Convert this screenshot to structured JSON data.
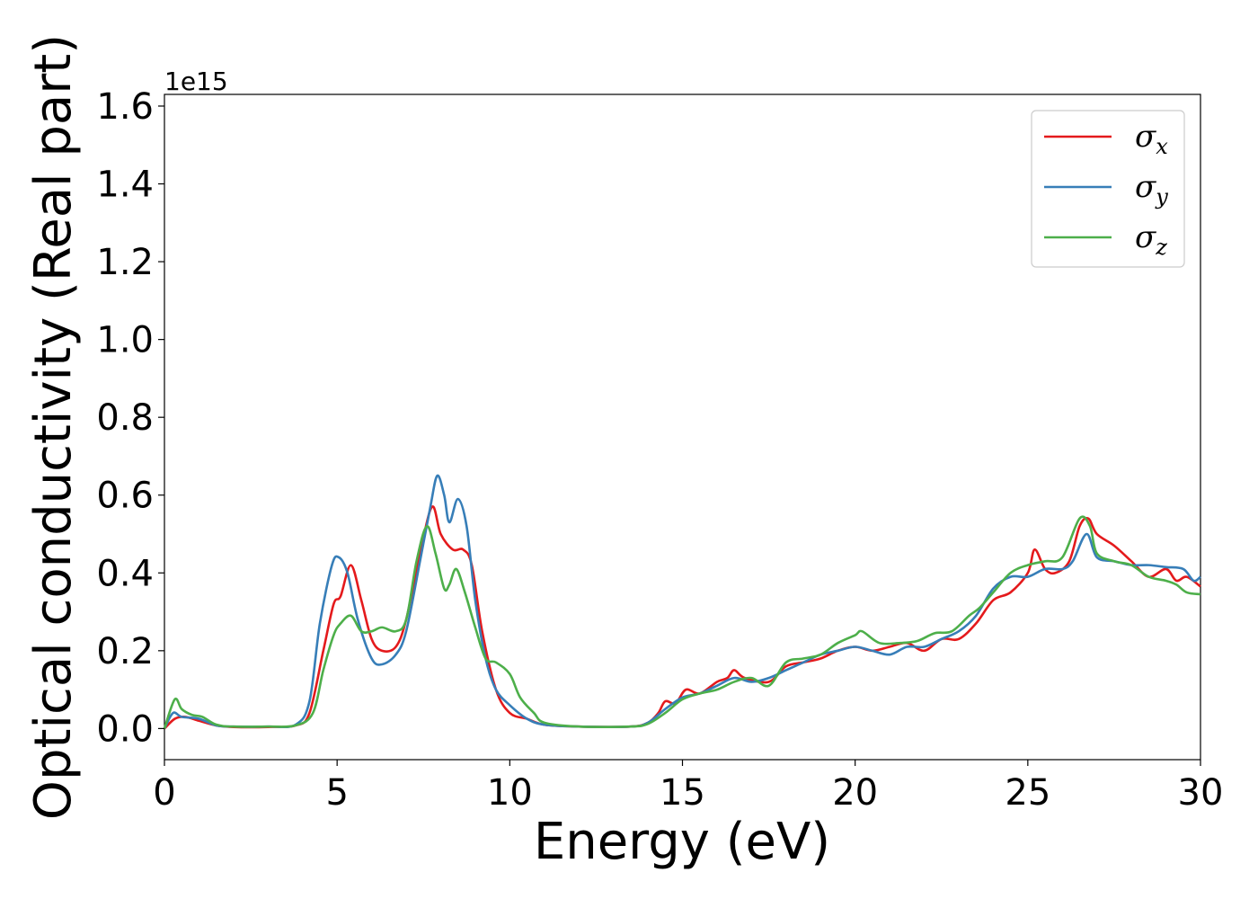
{
  "chart_data": {
    "type": "line",
    "xlabel": "Energy (eV)",
    "ylabel": "Optical conductivity (Real part)",
    "y_offset_text": "1e15",
    "y_multiplier": 1000000000000000.0,
    "xlim": [
      0,
      30
    ],
    "ylim": [
      -0.08,
      1.63
    ],
    "x_ticks": [
      0,
      5,
      10,
      15,
      20,
      25,
      30
    ],
    "x_tick_labels": [
      "0",
      "5",
      "10",
      "15",
      "20",
      "25",
      "30"
    ],
    "y_ticks": [
      0.0,
      0.2,
      0.4,
      0.6,
      0.8,
      1.0,
      1.2,
      1.4,
      1.6
    ],
    "y_tick_labels": [
      "0.0",
      "0.2",
      "0.4",
      "0.6",
      "0.8",
      "1.0",
      "1.2",
      "1.4",
      "1.6"
    ],
    "grid": false,
    "legend_position": "top-right",
    "series": [
      {
        "name": "σx",
        "symbol": "σ",
        "subscript": "x",
        "color": "#e41a1c",
        "points": [
          [
            0,
            0
          ],
          [
            0.3,
            0.025
          ],
          [
            0.6,
            0.03
          ],
          [
            1.0,
            0.02
          ],
          [
            1.5,
            0.008
          ],
          [
            2,
            0.004
          ],
          [
            3,
            0.004
          ],
          [
            3.8,
            0.008
          ],
          [
            4.2,
            0.04
          ],
          [
            4.6,
            0.2
          ],
          [
            4.9,
            0.32
          ],
          [
            5.1,
            0.34
          ],
          [
            5.4,
            0.42
          ],
          [
            5.7,
            0.33
          ],
          [
            6.0,
            0.23
          ],
          [
            6.3,
            0.2
          ],
          [
            6.7,
            0.21
          ],
          [
            7.0,
            0.28
          ],
          [
            7.4,
            0.45
          ],
          [
            7.75,
            0.57
          ],
          [
            8.0,
            0.5
          ],
          [
            8.35,
            0.46
          ],
          [
            8.65,
            0.46
          ],
          [
            8.9,
            0.42
          ],
          [
            9.2,
            0.25
          ],
          [
            9.6,
            0.1
          ],
          [
            10.0,
            0.04
          ],
          [
            10.5,
            0.025
          ],
          [
            11.0,
            0.01
          ],
          [
            12.0,
            0.005
          ],
          [
            13.5,
            0.005
          ],
          [
            14.0,
            0.015
          ],
          [
            14.3,
            0.04
          ],
          [
            14.5,
            0.07
          ],
          [
            14.8,
            0.065
          ],
          [
            15.1,
            0.1
          ],
          [
            15.5,
            0.09
          ],
          [
            16.0,
            0.12
          ],
          [
            16.3,
            0.13
          ],
          [
            16.5,
            0.15
          ],
          [
            16.8,
            0.13
          ],
          [
            17.5,
            0.12
          ],
          [
            18.0,
            0.16
          ],
          [
            18.5,
            0.17
          ],
          [
            19.0,
            0.18
          ],
          [
            19.5,
            0.2
          ],
          [
            20.0,
            0.21
          ],
          [
            20.5,
            0.2
          ],
          [
            21.0,
            0.21
          ],
          [
            21.5,
            0.22
          ],
          [
            22.0,
            0.2
          ],
          [
            22.5,
            0.23
          ],
          [
            23.0,
            0.23
          ],
          [
            23.5,
            0.27
          ],
          [
            24.0,
            0.33
          ],
          [
            24.5,
            0.35
          ],
          [
            25.0,
            0.4
          ],
          [
            25.2,
            0.46
          ],
          [
            25.5,
            0.41
          ],
          [
            25.8,
            0.4
          ],
          [
            26.2,
            0.43
          ],
          [
            26.5,
            0.52
          ],
          [
            26.75,
            0.54
          ],
          [
            27.0,
            0.5
          ],
          [
            27.5,
            0.47
          ],
          [
            28.0,
            0.43
          ],
          [
            28.5,
            0.39
          ],
          [
            29.0,
            0.41
          ],
          [
            29.3,
            0.38
          ],
          [
            29.6,
            0.39
          ],
          [
            30.0,
            0.365
          ]
        ]
      },
      {
        "name": "σy",
        "symbol": "σ",
        "subscript": "y",
        "color": "#377eb8",
        "points": [
          [
            0,
            0
          ],
          [
            0.25,
            0.04
          ],
          [
            0.5,
            0.03
          ],
          [
            1.0,
            0.025
          ],
          [
            1.5,
            0.008
          ],
          [
            2,
            0.005
          ],
          [
            3,
            0.005
          ],
          [
            3.8,
            0.01
          ],
          [
            4.2,
            0.07
          ],
          [
            4.5,
            0.27
          ],
          [
            4.85,
            0.42
          ],
          [
            5.05,
            0.44
          ],
          [
            5.3,
            0.4
          ],
          [
            5.6,
            0.28
          ],
          [
            6.0,
            0.18
          ],
          [
            6.3,
            0.165
          ],
          [
            6.7,
            0.19
          ],
          [
            7.0,
            0.25
          ],
          [
            7.4,
            0.43
          ],
          [
            7.7,
            0.57
          ],
          [
            7.9,
            0.65
          ],
          [
            8.1,
            0.6
          ],
          [
            8.25,
            0.53
          ],
          [
            8.5,
            0.59
          ],
          [
            8.75,
            0.52
          ],
          [
            9.0,
            0.33
          ],
          [
            9.3,
            0.18
          ],
          [
            9.6,
            0.1
          ],
          [
            10.0,
            0.06
          ],
          [
            10.5,
            0.025
          ],
          [
            11.0,
            0.01
          ],
          [
            12.0,
            0.005
          ],
          [
            13.5,
            0.005
          ],
          [
            14.0,
            0.015
          ],
          [
            14.5,
            0.05
          ],
          [
            15.0,
            0.08
          ],
          [
            15.5,
            0.09
          ],
          [
            16.0,
            0.11
          ],
          [
            16.5,
            0.13
          ],
          [
            17.0,
            0.12
          ],
          [
            17.5,
            0.13
          ],
          [
            18.0,
            0.15
          ],
          [
            18.5,
            0.17
          ],
          [
            19.0,
            0.19
          ],
          [
            19.5,
            0.2
          ],
          [
            20.0,
            0.21
          ],
          [
            20.5,
            0.2
          ],
          [
            21.0,
            0.19
          ],
          [
            21.5,
            0.21
          ],
          [
            22.0,
            0.21
          ],
          [
            22.5,
            0.23
          ],
          [
            23.0,
            0.25
          ],
          [
            23.5,
            0.29
          ],
          [
            24.0,
            0.36
          ],
          [
            24.5,
            0.39
          ],
          [
            25.0,
            0.39
          ],
          [
            25.5,
            0.41
          ],
          [
            26.0,
            0.41
          ],
          [
            26.3,
            0.43
          ],
          [
            26.7,
            0.5
          ],
          [
            27.0,
            0.44
          ],
          [
            27.5,
            0.43
          ],
          [
            28.0,
            0.42
          ],
          [
            28.5,
            0.42
          ],
          [
            29.0,
            0.415
          ],
          [
            29.5,
            0.41
          ],
          [
            29.8,
            0.38
          ],
          [
            30.0,
            0.39
          ]
        ]
      },
      {
        "name": "σz",
        "symbol": "σ",
        "subscript": "z",
        "color": "#4daf4a",
        "points": [
          [
            0,
            0
          ],
          [
            0.3,
            0.075
          ],
          [
            0.5,
            0.05
          ],
          [
            0.8,
            0.035
          ],
          [
            1.1,
            0.03
          ],
          [
            1.5,
            0.01
          ],
          [
            2,
            0.005
          ],
          [
            3,
            0.005
          ],
          [
            3.8,
            0.008
          ],
          [
            4.3,
            0.04
          ],
          [
            4.6,
            0.15
          ],
          [
            4.9,
            0.24
          ],
          [
            5.1,
            0.27
          ],
          [
            5.4,
            0.29
          ],
          [
            5.7,
            0.25
          ],
          [
            6.0,
            0.25
          ],
          [
            6.3,
            0.26
          ],
          [
            6.7,
            0.25
          ],
          [
            7.0,
            0.28
          ],
          [
            7.3,
            0.43
          ],
          [
            7.6,
            0.52
          ],
          [
            7.85,
            0.45
          ],
          [
            8.1,
            0.36
          ],
          [
            8.25,
            0.37
          ],
          [
            8.45,
            0.41
          ],
          [
            8.7,
            0.35
          ],
          [
            9.0,
            0.26
          ],
          [
            9.3,
            0.18
          ],
          [
            9.6,
            0.17
          ],
          [
            10.0,
            0.14
          ],
          [
            10.3,
            0.08
          ],
          [
            10.7,
            0.04
          ],
          [
            11.0,
            0.015
          ],
          [
            12.0,
            0.005
          ],
          [
            13.5,
            0.005
          ],
          [
            14.0,
            0.012
          ],
          [
            14.5,
            0.04
          ],
          [
            15.0,
            0.075
          ],
          [
            15.5,
            0.09
          ],
          [
            16.0,
            0.1
          ],
          [
            16.5,
            0.12
          ],
          [
            17.0,
            0.13
          ],
          [
            17.5,
            0.11
          ],
          [
            18.0,
            0.17
          ],
          [
            18.5,
            0.18
          ],
          [
            19.0,
            0.19
          ],
          [
            19.5,
            0.22
          ],
          [
            20.0,
            0.24
          ],
          [
            20.2,
            0.25
          ],
          [
            20.7,
            0.22
          ],
          [
            21.3,
            0.22
          ],
          [
            21.8,
            0.225
          ],
          [
            22.3,
            0.245
          ],
          [
            22.8,
            0.25
          ],
          [
            23.3,
            0.29
          ],
          [
            23.6,
            0.31
          ],
          [
            24.0,
            0.35
          ],
          [
            24.5,
            0.4
          ],
          [
            25.0,
            0.42
          ],
          [
            25.5,
            0.43
          ],
          [
            26.0,
            0.44
          ],
          [
            26.5,
            0.54
          ],
          [
            26.8,
            0.52
          ],
          [
            27.0,
            0.45
          ],
          [
            27.5,
            0.43
          ],
          [
            28.0,
            0.42
          ],
          [
            28.5,
            0.39
          ],
          [
            29.0,
            0.38
          ],
          [
            29.3,
            0.37
          ],
          [
            29.6,
            0.35
          ],
          [
            30.0,
            0.345
          ]
        ]
      }
    ]
  }
}
